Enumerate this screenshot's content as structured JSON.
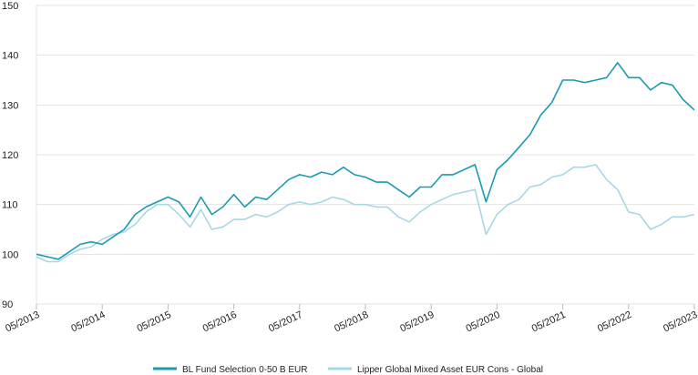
{
  "chart_data": {
    "type": "line",
    "x": [
      "05/2013",
      "07/2013",
      "09/2013",
      "11/2013",
      "01/2014",
      "03/2014",
      "05/2014",
      "07/2014",
      "09/2014",
      "11/2014",
      "01/2015",
      "03/2015",
      "05/2015",
      "07/2015",
      "09/2015",
      "11/2015",
      "01/2016",
      "03/2016",
      "05/2016",
      "07/2016",
      "09/2016",
      "11/2016",
      "01/2017",
      "03/2017",
      "05/2017",
      "07/2017",
      "09/2017",
      "11/2017",
      "01/2018",
      "03/2018",
      "05/2018",
      "07/2018",
      "09/2018",
      "11/2018",
      "01/2019",
      "03/2019",
      "05/2019",
      "07/2019",
      "09/2019",
      "11/2019",
      "01/2020",
      "03/2020",
      "05/2020",
      "07/2020",
      "09/2020",
      "11/2020",
      "01/2021",
      "03/2021",
      "05/2021",
      "07/2021",
      "09/2021",
      "11/2021",
      "01/2022",
      "03/2022",
      "05/2022",
      "07/2022",
      "09/2022",
      "11/2022",
      "01/2023",
      "03/2023",
      "05/2023"
    ],
    "series": [
      {
        "name": "BL Fund Selection 0-50 B EUR",
        "color": "#1a9bb0",
        "values": [
          100,
          99.5,
          99,
          100.5,
          102,
          102.5,
          102,
          103.5,
          105,
          108,
          109.5,
          110.5,
          111.5,
          110.5,
          107.5,
          111.5,
          108,
          109.5,
          112,
          109.5,
          111.5,
          111,
          113,
          115,
          116,
          115.5,
          116.5,
          116,
          117.5,
          116,
          115.5,
          114.5,
          114.5,
          113,
          111.5,
          113.5,
          113.5,
          116,
          116,
          117,
          118,
          110.5,
          117,
          119,
          121.5,
          124,
          128,
          130.5,
          135,
          135,
          134.5,
          135,
          135.5,
          138.5,
          135.5,
          135.5,
          133,
          134.5,
          134,
          131,
          129
        ]
      },
      {
        "name": "Lipper Global Mixed Asset EUR Cons - Global",
        "color": "#a6d8e3",
        "values": [
          99.5,
          98.5,
          98.5,
          100,
          101,
          101.5,
          103,
          104,
          104.5,
          106,
          108.5,
          110,
          110,
          108,
          105.5,
          109,
          105,
          105.5,
          107,
          107,
          108,
          107.5,
          108.5,
          110,
          110.5,
          110,
          110.5,
          111.5,
          111,
          110,
          110,
          109.5,
          109.5,
          107.5,
          106.5,
          108.5,
          110,
          111,
          112,
          112.5,
          113,
          104,
          108,
          110,
          111,
          113.5,
          114,
          115.5,
          116,
          117.5,
          117.5,
          118,
          115,
          113,
          108.5,
          108,
          105,
          106,
          107.5,
          107.5,
          108
        ]
      }
    ],
    "ylim": [
      90,
      150
    ],
    "yticks": [
      90,
      100,
      110,
      120,
      130,
      140,
      150
    ],
    "xticks": [
      "05/2013",
      "05/2014",
      "05/2015",
      "05/2016",
      "05/2017",
      "05/2018",
      "05/2019",
      "05/2020",
      "05/2021",
      "05/2022",
      "05/2023"
    ],
    "grid": true,
    "legend": "bottom"
  }
}
